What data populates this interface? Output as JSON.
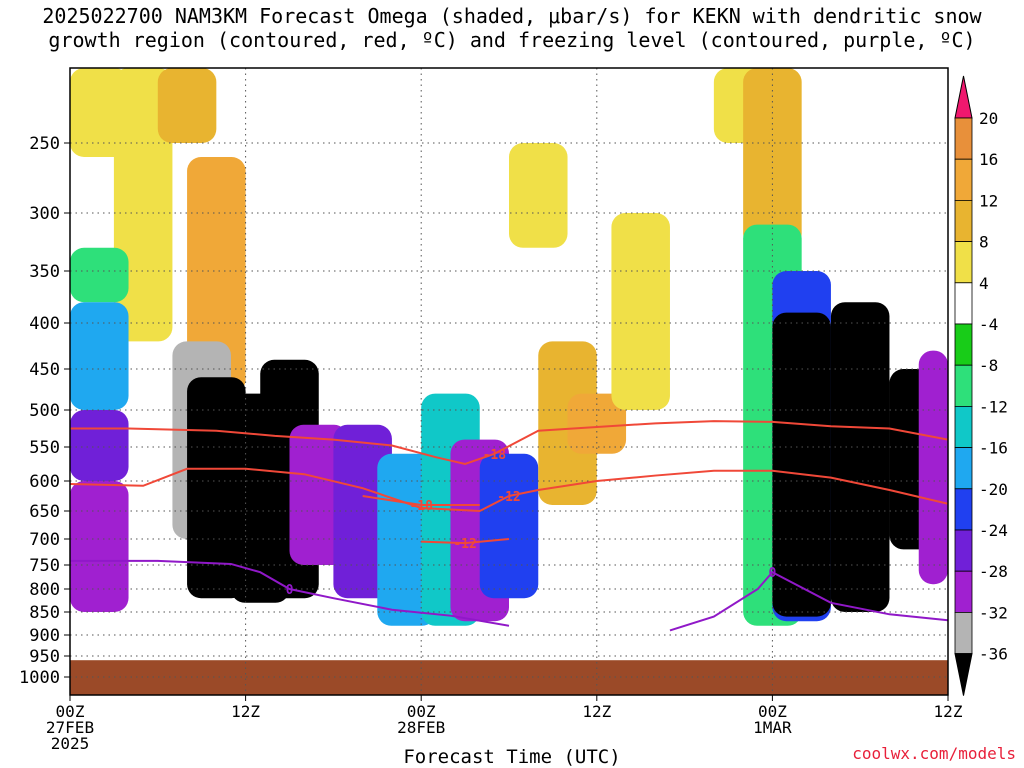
{
  "title_line1": "2025022700 NAM3KM Forecast Omega (shaded, μbar/s) for KEKN with dendritic snow",
  "title_line2": "growth region (contoured, red, ºC) and freezing level (contoured, purple, ºC)",
  "xlabel": "Forecast Time (UTC)",
  "credit": "coolwx.com/models",
  "chart_data": {
    "type": "heatmap",
    "title": "2025022700 NAM3KM Forecast Omega (shaded, μbar/s) for KEKN with dendritic snow growth region (contoured, red, ºC) and freezing level (contoured, purple, ºC)",
    "xlabel": "Forecast Time (UTC)",
    "ylabel": "",
    "x_range_hours": [
      0,
      60
    ],
    "y_ticks": [
      "250",
      "300",
      "350",
      "400",
      "450",
      "500",
      "550",
      "600",
      "650",
      "700",
      "750",
      "800",
      "850",
      "900",
      "950",
      "1000"
    ],
    "x_ticks": [
      {
        "hour": 0,
        "label": "00Z",
        "sub": "27FEB",
        "sub2": "2025"
      },
      {
        "hour": 12,
        "label": "12Z"
      },
      {
        "hour": 24,
        "label": "00Z",
        "sub": "28FEB"
      },
      {
        "hour": 36,
        "label": "12Z"
      },
      {
        "hour": 48,
        "label": "00Z",
        "sub": "1MAR"
      },
      {
        "hour": 60,
        "label": "12Z"
      }
    ],
    "colorbar_labels": [
      "20",
      "16",
      "12",
      "8",
      "4",
      "-4",
      "-8",
      "-12",
      "-16",
      "-20",
      "-24",
      "-28",
      "-32",
      "-36"
    ],
    "colorbar_colors": [
      "#f03050",
      "#e8903a",
      "#f0a838",
      "#e8b430",
      "#f0e048",
      "#ffffff",
      "#18cc18",
      "#2ee07a",
      "#10c8c8",
      "#1fa8f0",
      "#2040f0",
      "#7020d8",
      "#a020d0",
      "#b4b4b4",
      "#000000"
    ],
    "ground_color": "#9b4a28",
    "omega_cells": [
      {
        "t": 0,
        "p_top": 230,
        "p_bot": 260,
        "omega": 4
      },
      {
        "t": 3,
        "p_top": 230,
        "p_bot": 420,
        "omega": 4
      },
      {
        "t": 6,
        "p_top": 230,
        "p_bot": 250,
        "omega": 8
      },
      {
        "t": 8,
        "p_top": 260,
        "p_bot": 480,
        "omega": 12
      },
      {
        "t": 0,
        "p_top": 330,
        "p_bot": 380,
        "omega": -8
      },
      {
        "t": 0,
        "p_top": 380,
        "p_bot": 500,
        "omega": -16
      },
      {
        "t": 0,
        "p_top": 500,
        "p_bot": 600,
        "omega": -24
      },
      {
        "t": 0,
        "p_top": 600,
        "p_bot": 850,
        "omega": -28
      },
      {
        "t": 7,
        "p_top": 420,
        "p_bot": 700,
        "omega": -32
      },
      {
        "t": 8,
        "p_top": 460,
        "p_bot": 820,
        "omega": -36
      },
      {
        "t": 11,
        "p_top": 480,
        "p_bot": 830,
        "omega": -36
      },
      {
        "t": 13,
        "p_top": 440,
        "p_bot": 820,
        "omega": -36
      },
      {
        "t": 15,
        "p_top": 520,
        "p_bot": 750,
        "omega": -28
      },
      {
        "t": 18,
        "p_top": 520,
        "p_bot": 820,
        "omega": -24
      },
      {
        "t": 21,
        "p_top": 560,
        "p_bot": 880,
        "omega": -16
      },
      {
        "t": 24,
        "p_top": 480,
        "p_bot": 880,
        "omega": -12
      },
      {
        "t": 26,
        "p_top": 540,
        "p_bot": 870,
        "omega": -28
      },
      {
        "t": 28,
        "p_top": 560,
        "p_bot": 820,
        "omega": -20
      },
      {
        "t": 30,
        "p_top": 250,
        "p_bot": 330,
        "omega": 4
      },
      {
        "t": 32,
        "p_top": 420,
        "p_bot": 640,
        "omega": 8
      },
      {
        "t": 34,
        "p_top": 480,
        "p_bot": 560,
        "omega": 12
      },
      {
        "t": 37,
        "p_top": 300,
        "p_bot": 500,
        "omega": 4
      },
      {
        "t": 44,
        "p_top": 230,
        "p_bot": 250,
        "omega": 4
      },
      {
        "t": 46,
        "p_top": 230,
        "p_bot": 330,
        "omega": 8
      },
      {
        "t": 46,
        "p_top": 310,
        "p_bot": 880,
        "omega": -8
      },
      {
        "t": 48,
        "p_top": 350,
        "p_bot": 870,
        "omega": -20
      },
      {
        "t": 48,
        "p_top": 390,
        "p_bot": 860,
        "omega": -36
      },
      {
        "t": 52,
        "p_top": 380,
        "p_bot": 850,
        "omega": -36
      },
      {
        "t": 56,
        "p_top": 450,
        "p_bot": 720,
        "omega": -36
      },
      {
        "t": 58,
        "p_top": 430,
        "p_bot": 790,
        "omega": -28
      }
    ],
    "dgz_contours": [
      {
        "label": "-18",
        "points": [
          [
            0,
            525
          ],
          [
            4,
            525
          ],
          [
            10,
            528
          ],
          [
            14,
            535
          ],
          [
            18,
            540
          ],
          [
            22,
            548
          ],
          [
            25,
            565
          ],
          [
            27,
            575
          ],
          [
            29,
            560
          ],
          [
            32,
            528
          ],
          [
            36,
            523
          ],
          [
            40,
            518
          ],
          [
            44,
            515
          ],
          [
            48,
            516
          ],
          [
            52,
            522
          ],
          [
            56,
            525
          ],
          [
            60,
            540
          ]
        ]
      },
      {
        "label": "-12",
        "points": [
          [
            0,
            605
          ],
          [
            5,
            608
          ],
          [
            8,
            582
          ],
          [
            12,
            582
          ],
          [
            16,
            590
          ],
          [
            20,
            612
          ],
          [
            24,
            645
          ],
          [
            28,
            650
          ],
          [
            30,
            625
          ],
          [
            32,
            615
          ],
          [
            36,
            600
          ],
          [
            40,
            592
          ],
          [
            44,
            585
          ],
          [
            48,
            585
          ],
          [
            52,
            595
          ],
          [
            56,
            615
          ],
          [
            60,
            638
          ]
        ]
      },
      {
        "label": "-18",
        "points": [
          [
            20,
            625
          ],
          [
            24,
            640
          ],
          [
            28,
            640
          ]
        ]
      },
      {
        "label": "-12",
        "points": [
          [
            24,
            705
          ],
          [
            27,
            708
          ],
          [
            30,
            700
          ]
        ]
      }
    ],
    "freezing_contours": [
      {
        "label": "0",
        "points": [
          [
            0,
            742
          ],
          [
            6,
            742
          ],
          [
            11,
            748
          ],
          [
            13,
            765
          ],
          [
            15,
            800
          ],
          [
            18,
            820
          ],
          [
            22,
            845
          ],
          [
            26,
            858
          ],
          [
            30,
            880
          ]
        ]
      },
      {
        "label": "0",
        "points": [
          [
            41,
            890
          ],
          [
            44,
            860
          ],
          [
            47,
            800
          ],
          [
            48,
            765
          ],
          [
            52,
            830
          ],
          [
            56,
            855
          ],
          [
            60,
            868
          ]
        ]
      }
    ]
  }
}
